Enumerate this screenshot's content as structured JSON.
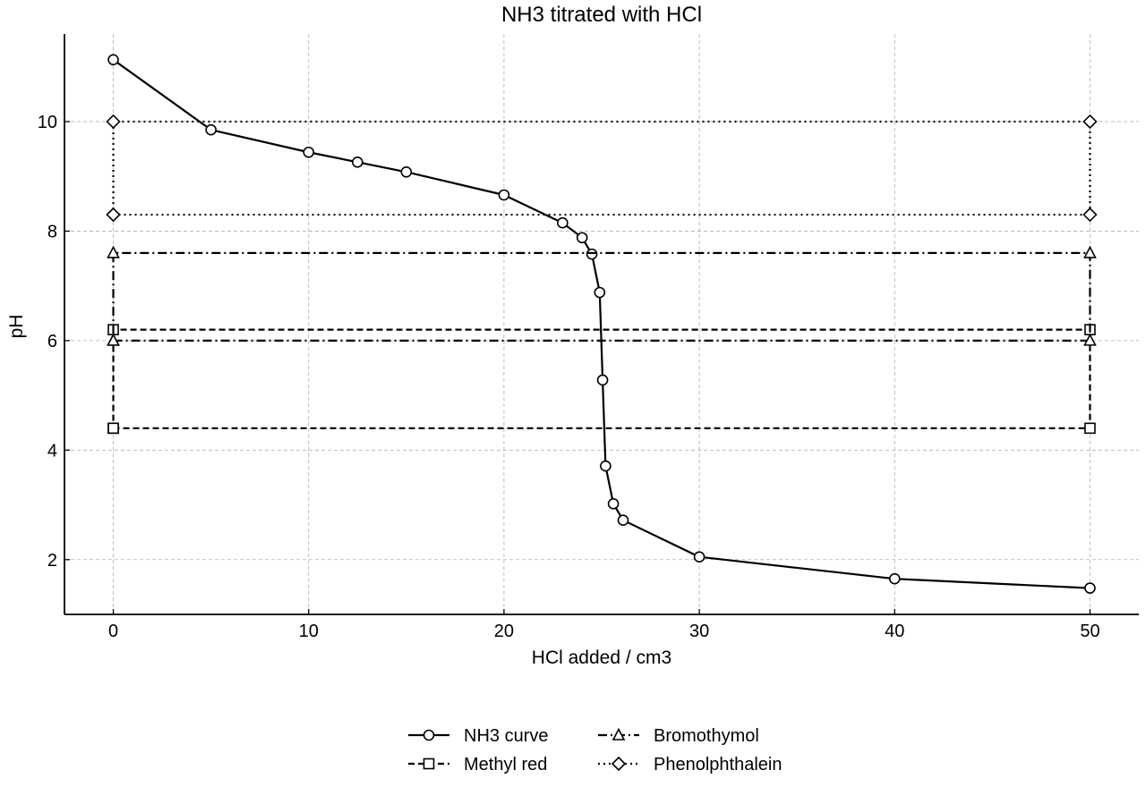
{
  "chart_data": {
    "type": "line",
    "title": "NH3 titrated with HCl",
    "xlabel": "HCl added / cm3",
    "ylabel": "pH",
    "xlim": [
      -2.5,
      52.5
    ],
    "ylim": [
      1.0,
      11.6
    ],
    "xticks": [
      0,
      10,
      20,
      30,
      40,
      50
    ],
    "yticks": [
      2,
      4,
      6,
      8,
      10
    ],
    "grid": true,
    "legend_position": "bottom-center",
    "series": [
      {
        "name": "NH3 curve",
        "marker": "circle",
        "linestyle": "solid",
        "x": [
          0,
          5,
          10,
          12.5,
          15,
          20,
          23,
          24,
          24.5,
          24.9,
          25.05,
          25.2,
          25.6,
          26.1,
          30,
          40,
          50
        ],
        "y": [
          11.13,
          9.85,
          9.44,
          9.26,
          9.08,
          8.66,
          8.15,
          7.88,
          7.58,
          6.88,
          5.28,
          3.71,
          3.02,
          2.72,
          2.05,
          1.65,
          1.48
        ]
      },
      {
        "name": "Methyl red",
        "marker": "square",
        "linestyle": "dashed",
        "x": [
          0,
          50,
          50,
          0,
          0
        ],
        "y": [
          4.4,
          4.4,
          6.2,
          6.2,
          4.4
        ]
      },
      {
        "name": "Bromothymol",
        "marker": "triangle",
        "linestyle": "dashdot",
        "x": [
          0,
          50,
          50,
          0,
          0
        ],
        "y": [
          6.0,
          6.0,
          7.6,
          7.6,
          6.0
        ]
      },
      {
        "name": "Phenolphthalein",
        "marker": "diamond",
        "linestyle": "dotted",
        "x": [
          0,
          50,
          50,
          0,
          0
        ],
        "y": [
          8.3,
          8.3,
          10.0,
          10.0,
          8.3
        ]
      }
    ],
    "colors": {
      "line": "#000000",
      "marker_fill": "#ffffff",
      "grid": "#b0b0b0"
    }
  }
}
